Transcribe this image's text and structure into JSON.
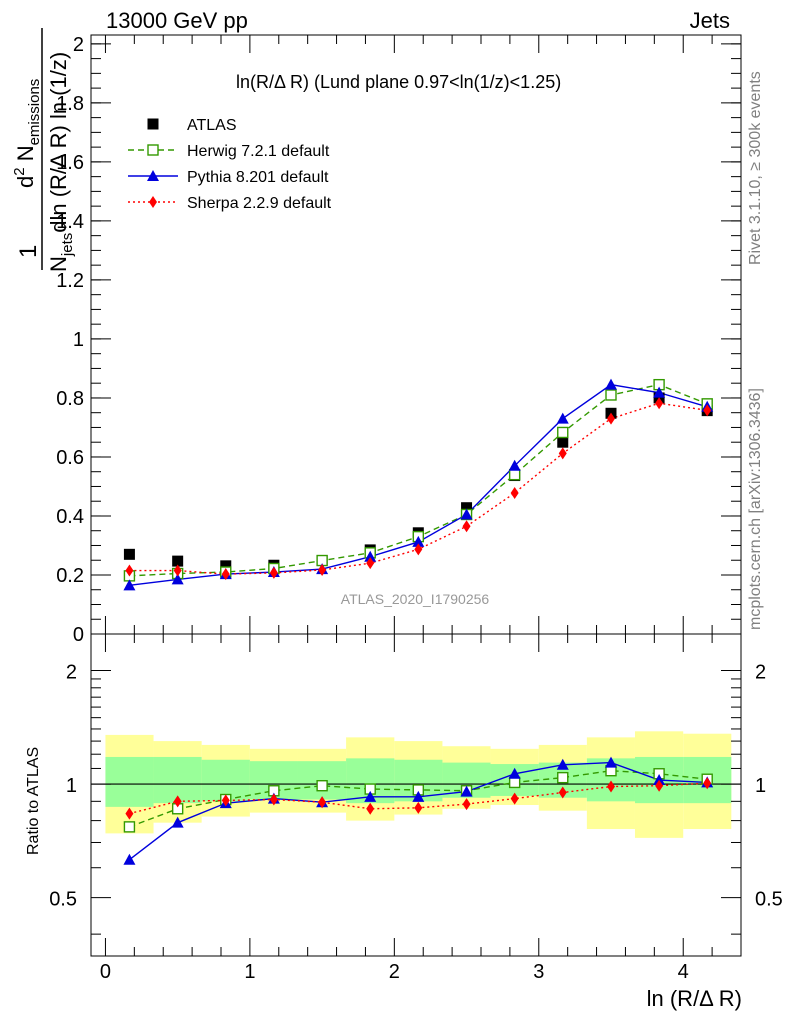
{
  "header": {
    "left": "13000 GeV pp",
    "right": "Jets"
  },
  "side_labels": {
    "rivet": "Rivet 3.1.10, ≥ 300k events",
    "mcplots": "mcplots.cern.ch [arXiv:1306.3436]"
  },
  "plot_title": "ln(R/Δ R) (Lund plane 0.97<ln(1/z)<1.25)",
  "watermark": "ATLAS_2020_I1790256",
  "main_ylabel": {
    "one": "1",
    "njets_n": "N",
    "njets_sub": "jets",
    "den_rest": "dln (R/Δ R) ln (1/z)",
    "num_d": "d",
    "num_sup": "2",
    "num_n": " N",
    "num_sub": "emissions"
  },
  "ratio_ylabel": "Ratio to ATLAS",
  "xlabel": "ln (R/Δ R)",
  "colors": {
    "atlas": "#000000",
    "herwig": "#339900",
    "pythia": "#0000dd",
    "sherpa": "#ff0000",
    "band_inner": "#99ff99",
    "band_outer": "#ffff99"
  },
  "chart_data": [
    {
      "type": "scatter",
      "title": "ln(R/Δ R) (Lund plane 0.97<ln(1/z)<1.25)",
      "xlabel": "ln (R/Δ R)",
      "ylabel": "1/N_jets d²N_emissions / dln(R/Δ R) ln(1/z)",
      "xlim": [
        -0.1,
        4.4
      ],
      "ylim": [
        0,
        2.03
      ],
      "x_ticks": [
        "0",
        "1",
        "2",
        "3",
        "4"
      ],
      "y_ticks": [
        "0",
        "0.2",
        "0.4",
        "0.6",
        "0.8",
        "1",
        "1.2",
        "1.4",
        "1.6",
        "1.8",
        "2"
      ],
      "x": [
        0.166,
        0.5,
        0.833,
        1.166,
        1.5,
        1.833,
        2.166,
        2.5,
        2.833,
        3.166,
        3.5,
        3.833,
        4.166
      ],
      "legend_position": "top-left",
      "series": [
        {
          "name": "ATLAS",
          "style": "square",
          "values": [
            0.27,
            0.247,
            0.231,
            0.233,
            0.249,
            0.285,
            0.343,
            0.428,
            0.537,
            0.65,
            0.748,
            0.8,
            0.757
          ]
        },
        {
          "name": "Herwig 7.2.1 default",
          "style": "open-square-dashed",
          "values": [
            0.197,
            0.205,
            0.21,
            0.222,
            0.249,
            0.275,
            0.33,
            0.405,
            0.54,
            0.683,
            0.81,
            0.845,
            0.78
          ]
        },
        {
          "name": "Pythia 8.201 default",
          "style": "triangle-solid",
          "values": [
            0.165,
            0.185,
            0.203,
            0.21,
            0.22,
            0.262,
            0.312,
            0.405,
            0.57,
            0.73,
            0.845,
            0.818,
            0.77
          ]
        },
        {
          "name": "Sherpa 2.2.9 default",
          "style": "diamond-dotted",
          "values": [
            0.215,
            0.215,
            0.203,
            0.207,
            0.217,
            0.24,
            0.287,
            0.365,
            0.478,
            0.612,
            0.73,
            0.782,
            0.758
          ]
        }
      ]
    },
    {
      "type": "scatter",
      "ylabel": "Ratio to ATLAS",
      "xlabel": "ln (R/Δ R)",
      "xlim": [
        -0.1,
        4.4
      ],
      "ylim": [
        0.35,
        2.5
      ],
      "y_ticks": [
        "0.5",
        "1",
        "2"
      ],
      "x": [
        0.166,
        0.5,
        0.833,
        1.166,
        1.5,
        1.833,
        2.166,
        2.5,
        2.833,
        3.166,
        3.5,
        3.833,
        4.166
      ],
      "bands": {
        "edges": [
          0,
          0.333,
          0.666,
          1.0,
          1.333,
          1.666,
          2.0,
          2.333,
          2.666,
          3.0,
          3.333,
          3.666,
          4.0,
          4.333
        ],
        "inner": [
          [
            0.87,
            1.18
          ],
          [
            0.89,
            1.18
          ],
          [
            0.9,
            1.16
          ],
          [
            0.91,
            1.15
          ],
          [
            0.91,
            1.15
          ],
          [
            0.89,
            1.17
          ],
          [
            0.9,
            1.16
          ],
          [
            0.92,
            1.14
          ],
          [
            0.93,
            1.13
          ],
          [
            0.92,
            1.14
          ],
          [
            0.9,
            1.17
          ],
          [
            0.89,
            1.18
          ],
          [
            0.89,
            1.18
          ]
        ],
        "outer": [
          [
            0.74,
            1.35
          ],
          [
            0.79,
            1.3
          ],
          [
            0.82,
            1.27
          ],
          [
            0.84,
            1.24
          ],
          [
            0.84,
            1.24
          ],
          [
            0.8,
            1.33
          ],
          [
            0.83,
            1.3
          ],
          [
            0.86,
            1.26
          ],
          [
            0.88,
            1.24
          ],
          [
            0.85,
            1.27
          ],
          [
            0.76,
            1.33
          ],
          [
            0.72,
            1.38
          ],
          [
            0.76,
            1.36
          ]
        ]
      },
      "series": [
        {
          "name": "Herwig 7.2.1 default",
          "values": [
            0.77,
            0.86,
            0.91,
            0.96,
            0.99,
            0.97,
            0.965,
            0.96,
            1.01,
            1.04,
            1.085,
            1.065,
            1.03
          ]
        },
        {
          "name": "Pythia 8.201 default",
          "values": [
            0.63,
            0.79,
            0.89,
            0.915,
            0.895,
            0.925,
            0.925,
            0.955,
            1.065,
            1.125,
            1.14,
            1.025,
            1.01
          ]
        },
        {
          "name": "Sherpa 2.2.9 default",
          "values": [
            0.835,
            0.9,
            0.905,
            0.91,
            0.895,
            0.86,
            0.865,
            0.885,
            0.915,
            0.95,
            0.985,
            0.99,
            1.005
          ]
        }
      ]
    }
  ]
}
